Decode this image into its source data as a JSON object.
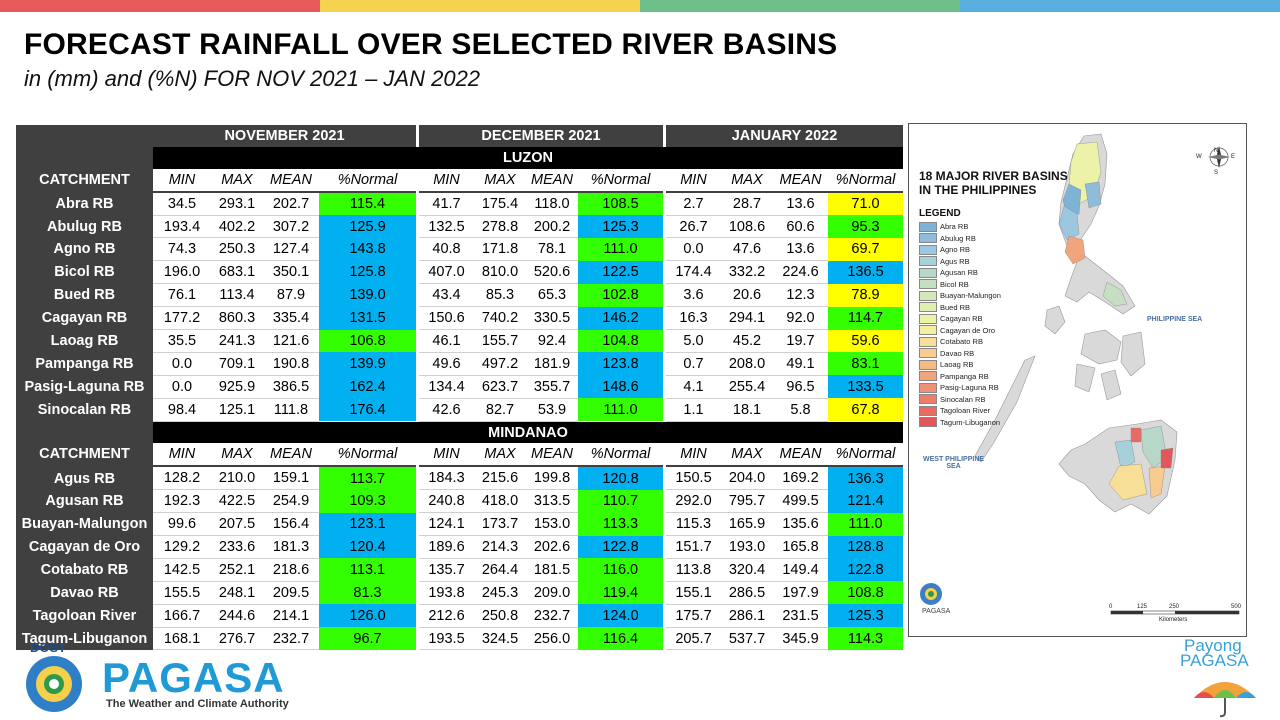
{
  "top_bar_colors": [
    "#e65a5a",
    "#f5d24f",
    "#6fbf8a",
    "#5aaee0"
  ],
  "header": {
    "title": "FORECAST RAINFALL OVER SELECTED RIVER BASINS",
    "subtitle": "in (mm) and (%N) FOR NOV 2021 – JAN 2022"
  },
  "colors": {
    "green": "#33ff00",
    "blue": "#00b0f0",
    "yellow": "#ffff00",
    "header_gray": "#404040"
  },
  "table": {
    "months": [
      "NOVEMBER 2021",
      "DECEMBER 2021",
      "JANUARY 2022"
    ],
    "columns": [
      "MIN",
      "MAX",
      "MEAN",
      "%Normal"
    ],
    "catchment_header": "CATCHMENT",
    "sections": [
      {
        "name": "LUZON",
        "rows": [
          {
            "name": "Abra RB",
            "v": [
              [
                "34.5",
                "293.1",
                "202.7",
                "115.4",
                "green"
              ],
              [
                "41.7",
                "175.4",
                "118.0",
                "108.5",
                "green"
              ],
              [
                "2.7",
                "28.7",
                "13.6",
                "71.0",
                "yellow"
              ]
            ]
          },
          {
            "name": "Abulug RB",
            "v": [
              [
                "193.4",
                "402.2",
                "307.2",
                "125.9",
                "blue"
              ],
              [
                "132.5",
                "278.8",
                "200.2",
                "125.3",
                "blue"
              ],
              [
                "26.7",
                "108.6",
                "60.6",
                "95.3",
                "green"
              ]
            ]
          },
          {
            "name": "Agno RB",
            "v": [
              [
                "74.3",
                "250.3",
                "127.4",
                "143.8",
                "blue"
              ],
              [
                "40.8",
                "171.8",
                "78.1",
                "111.0",
                "green"
              ],
              [
                "0.0",
                "47.6",
                "13.6",
                "69.7",
                "yellow"
              ]
            ]
          },
          {
            "name": "Bicol RB",
            "v": [
              [
                "196.0",
                "683.1",
                "350.1",
                "125.8",
                "blue"
              ],
              [
                "407.0",
                "810.0",
                "520.6",
                "122.5",
                "blue"
              ],
              [
                "174.4",
                "332.2",
                "224.6",
                "136.5",
                "blue"
              ]
            ]
          },
          {
            "name": "Bued RB",
            "v": [
              [
                "76.1",
                "113.4",
                "87.9",
                "139.0",
                "blue"
              ],
              [
                "43.4",
                "85.3",
                "65.3",
                "102.8",
                "green"
              ],
              [
                "3.6",
                "20.6",
                "12.3",
                "78.9",
                "yellow"
              ]
            ]
          },
          {
            "name": "Cagayan RB",
            "v": [
              [
                "177.2",
                "860.3",
                "335.4",
                "131.5",
                "blue"
              ],
              [
                "150.6",
                "740.2",
                "330.5",
                "146.2",
                "blue"
              ],
              [
                "16.3",
                "294.1",
                "92.0",
                "114.7",
                "green"
              ]
            ]
          },
          {
            "name": "Laoag RB",
            "v": [
              [
                "35.5",
                "241.3",
                "121.6",
                "106.8",
                "green"
              ],
              [
                "46.1",
                "155.7",
                "92.4",
                "104.8",
                "green"
              ],
              [
                "5.0",
                "45.2",
                "19.7",
                "59.6",
                "yellow"
              ]
            ]
          },
          {
            "name": "Pampanga RB",
            "v": [
              [
                "0.0",
                "709.1",
                "190.8",
                "139.9",
                "blue"
              ],
              [
                "49.6",
                "497.2",
                "181.9",
                "123.8",
                "blue"
              ],
              [
                "0.7",
                "208.0",
                "49.1",
                "83.1",
                "green"
              ]
            ]
          },
          {
            "name": "Pasig-Laguna RB",
            "v": [
              [
                "0.0",
                "925.9",
                "386.5",
                "162.4",
                "blue"
              ],
              [
                "134.4",
                "623.7",
                "355.7",
                "148.6",
                "blue"
              ],
              [
                "4.1",
                "255.4",
                "96.5",
                "133.5",
                "blue"
              ]
            ]
          },
          {
            "name": "Sinocalan RB",
            "v": [
              [
                "98.4",
                "125.1",
                "111.8",
                "176.4",
                "blue"
              ],
              [
                "42.6",
                "82.7",
                "53.9",
                "111.0",
                "green"
              ],
              [
                "1.1",
                "18.1",
                "5.8",
                "67.8",
                "yellow"
              ]
            ]
          }
        ]
      },
      {
        "name": "MINDANAO",
        "rows": [
          {
            "name": "Agus RB",
            "v": [
              [
                "128.2",
                "210.0",
                "159.1",
                "113.7",
                "green"
              ],
              [
                "184.3",
                "215.6",
                "199.8",
                "120.8",
                "blue"
              ],
              [
                "150.5",
                "204.0",
                "169.2",
                "136.3",
                "blue"
              ]
            ]
          },
          {
            "name": "Agusan RB",
            "v": [
              [
                "192.3",
                "422.5",
                "254.9",
                "109.3",
                "green"
              ],
              [
                "240.8",
                "418.0",
                "313.5",
                "110.7",
                "green"
              ],
              [
                "292.0",
                "795.7",
                "499.5",
                "121.4",
                "blue"
              ]
            ]
          },
          {
            "name": "Buayan-Malungon",
            "v": [
              [
                "99.6",
                "207.5",
                "156.4",
                "123.1",
                "blue"
              ],
              [
                "124.1",
                "173.7",
                "153.0",
                "113.3",
                "green"
              ],
              [
                "115.3",
                "165.9",
                "135.6",
                "111.0",
                "green"
              ]
            ]
          },
          {
            "name": "Cagayan de Oro",
            "v": [
              [
                "129.2",
                "233.6",
                "181.3",
                "120.4",
                "blue"
              ],
              [
                "189.6",
                "214.3",
                "202.6",
                "122.8",
                "blue"
              ],
              [
                "151.7",
                "193.0",
                "165.8",
                "128.8",
                "blue"
              ]
            ]
          },
          {
            "name": "Cotabato RB",
            "v": [
              [
                "142.5",
                "252.1",
                "218.6",
                "113.1",
                "green"
              ],
              [
                "135.7",
                "264.4",
                "181.5",
                "116.0",
                "green"
              ],
              [
                "113.8",
                "320.4",
                "149.4",
                "122.8",
                "blue"
              ]
            ]
          },
          {
            "name": "Davao RB",
            "v": [
              [
                "155.5",
                "248.1",
                "209.5",
                "81.3",
                "green"
              ],
              [
                "193.8",
                "245.3",
                "209.0",
                "119.4",
                "green"
              ],
              [
                "155.1",
                "286.5",
                "197.9",
                "108.8",
                "green"
              ]
            ]
          },
          {
            "name": "Tagoloan River",
            "v": [
              [
                "166.7",
                "244.6",
                "214.1",
                "126.0",
                "blue"
              ],
              [
                "212.6",
                "250.8",
                "232.7",
                "124.0",
                "blue"
              ],
              [
                "175.7",
                "286.1",
                "231.5",
                "125.3",
                "blue"
              ]
            ]
          },
          {
            "name": "Tagum-Libuganon",
            "v": [
              [
                "168.1",
                "276.7",
                "232.7",
                "96.7",
                "green"
              ],
              [
                "193.5",
                "324.5",
                "256.0",
                "116.4",
                "green"
              ],
              [
                "205.7",
                "537.7",
                "345.9",
                "114.3",
                "green"
              ]
            ]
          }
        ]
      }
    ]
  },
  "map": {
    "title_line1": "18 MAJOR RIVER BASINS",
    "title_line2": "IN THE PHILIPPINES",
    "legend_title": "LEGEND",
    "legend": [
      {
        "label": "Abra RB",
        "color": "#7fb3d5"
      },
      {
        "label": "Abulug RB",
        "color": "#8fbcd9"
      },
      {
        "label": "Agno RB",
        "color": "#9cc7e0"
      },
      {
        "label": "Agus RB",
        "color": "#a8d0d8"
      },
      {
        "label": "Agusan RB",
        "color": "#b7d8c8"
      },
      {
        "label": "Bicol RB",
        "color": "#c4e0c0"
      },
      {
        "label": "Buayan-Malungon",
        "color": "#d2e8b8"
      },
      {
        "label": "Bued RB",
        "color": "#e0efb0"
      },
      {
        "label": "Cagayan RB",
        "color": "#ecf2a8"
      },
      {
        "label": "Cagayan de Oro",
        "color": "#f6eea0"
      },
      {
        "label": "Cotabato RB",
        "color": "#f8df98"
      },
      {
        "label": "Davao RB",
        "color": "#f7cc8e"
      },
      {
        "label": "Laoag RB",
        "color": "#f5b985"
      },
      {
        "label": "Pampanga RB",
        "color": "#f2a47c"
      },
      {
        "label": "Pasig-Laguna RB",
        "color": "#ef9174"
      },
      {
        "label": "Sinocalan RB",
        "color": "#ec7e6c"
      },
      {
        "label": "Tagoloan River",
        "color": "#e86a64"
      },
      {
        "label": "Tagum-Libuganon",
        "color": "#e2565c"
      }
    ],
    "sea_east": "PHILIPPINE SEA",
    "sea_west_1": "WEST PHILIPPINE",
    "sea_west_2": "SEA",
    "scale_ticks": [
      "0",
      "125",
      "250",
      "500"
    ],
    "scale_unit": "Kilometers",
    "compass": [
      "N",
      "E",
      "S",
      "W"
    ],
    "logo_text": "PAGASA"
  },
  "footer": {
    "dost": "DOST",
    "pagasa": "PAGASA",
    "tagline": "The Weather and Climate Authority",
    "payong_1": "Payong",
    "payong_2": "PAGASA"
  }
}
